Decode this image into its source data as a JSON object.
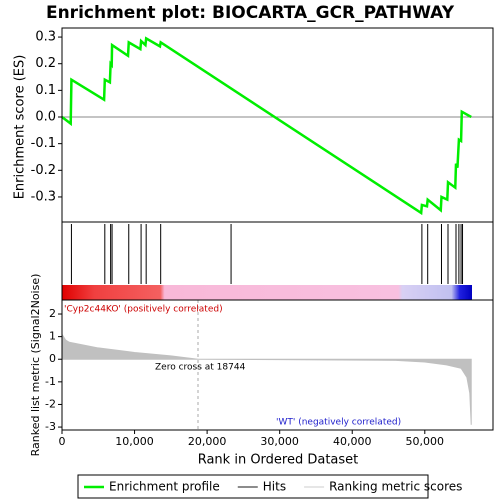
{
  "chart_data": [
    {
      "type": "line",
      "title": "Enrichment plot: BIOCARTA_GCR_PATHWAY",
      "ylabel": "Enrichment score (ES)",
      "xlim": [
        0,
        59400
      ],
      "ylim": [
        -0.394,
        0.334
      ],
      "yticks": [
        0.3,
        0.2,
        0.1,
        {
          "value": 0,
          "label": "0.0"
        },
        -0.1,
        -0.2,
        -0.3
      ],
      "x": [
        0,
        1200,
        1300,
        5800,
        5900,
        6600,
        6700,
        6850,
        6900,
        9100,
        9200,
        10800,
        10900,
        11500,
        11600,
        13500,
        13600,
        49500,
        49600,
        50300,
        50400,
        52200,
        52300,
        53100,
        53200,
        54200,
        54300,
        54500,
        54700,
        55000,
        55100,
        56400
      ],
      "series": [
        {
          "name": "Enrichment profile",
          "color": "#00ee00",
          "values": [
            0,
            -0.025,
            0.14,
            0.065,
            0.14,
            0.13,
            0.2,
            0.195,
            0.27,
            0.23,
            0.28,
            0.255,
            0.285,
            0.27,
            0.295,
            0.265,
            0.28,
            -0.36,
            -0.33,
            -0.335,
            -0.31,
            -0.35,
            -0.3,
            -0.31,
            -0.245,
            -0.265,
            -0.175,
            -0.19,
            -0.085,
            -0.09,
            0.02,
            0.0
          ]
        }
      ],
      "hits": {
        "name": "Hits",
        "color": "#000000",
        "x": [
          1300,
          5900,
          6700,
          6900,
          9200,
          10900,
          11600,
          13600,
          23300,
          49600,
          50400,
          52300,
          53200,
          54300,
          54700,
          55000,
          55200
        ]
      }
    },
    {
      "type": "area",
      "ylabel": "Ranked list metric (Signal2Noise)",
      "xlabel": "Rank in Ordered Dataset",
      "xlim": [
        0,
        59400
      ],
      "ylim": [
        -3.13,
        2.62
      ],
      "xticks": [
        0,
        {
          "value": 10000,
          "label": "10,000"
        },
        {
          "value": 20000,
          "label": "20,000"
        },
        {
          "value": 30000,
          "label": "30,000"
        },
        {
          "value": 40000,
          "label": "40,000"
        },
        {
          "value": 50000,
          "label": "50,000"
        }
      ],
      "yticks": [
        2,
        1,
        0,
        -1,
        -2,
        -3
      ],
      "x": [
        0,
        500,
        1000,
        5000,
        10000,
        15000,
        18744,
        30000,
        46000,
        50000,
        53000,
        55000,
        55800,
        56200,
        56400
      ],
      "series": [
        {
          "name": "Ranking metric scores",
          "color": "#c0c0c0",
          "values": [
            1.1,
            0.85,
            0.75,
            0.5,
            0.3,
            0.15,
            0,
            -0.02,
            -0.05,
            -0.12,
            -0.25,
            -0.4,
            -0.8,
            -1.5,
            -2.9
          ]
        }
      ],
      "zero_cross": 18744,
      "annotations": [
        "'Cyp2c44KO' (positively correlated)",
        "Zero cross at 18744",
        "'WT' (negatively correlated)"
      ]
    }
  ]
}
